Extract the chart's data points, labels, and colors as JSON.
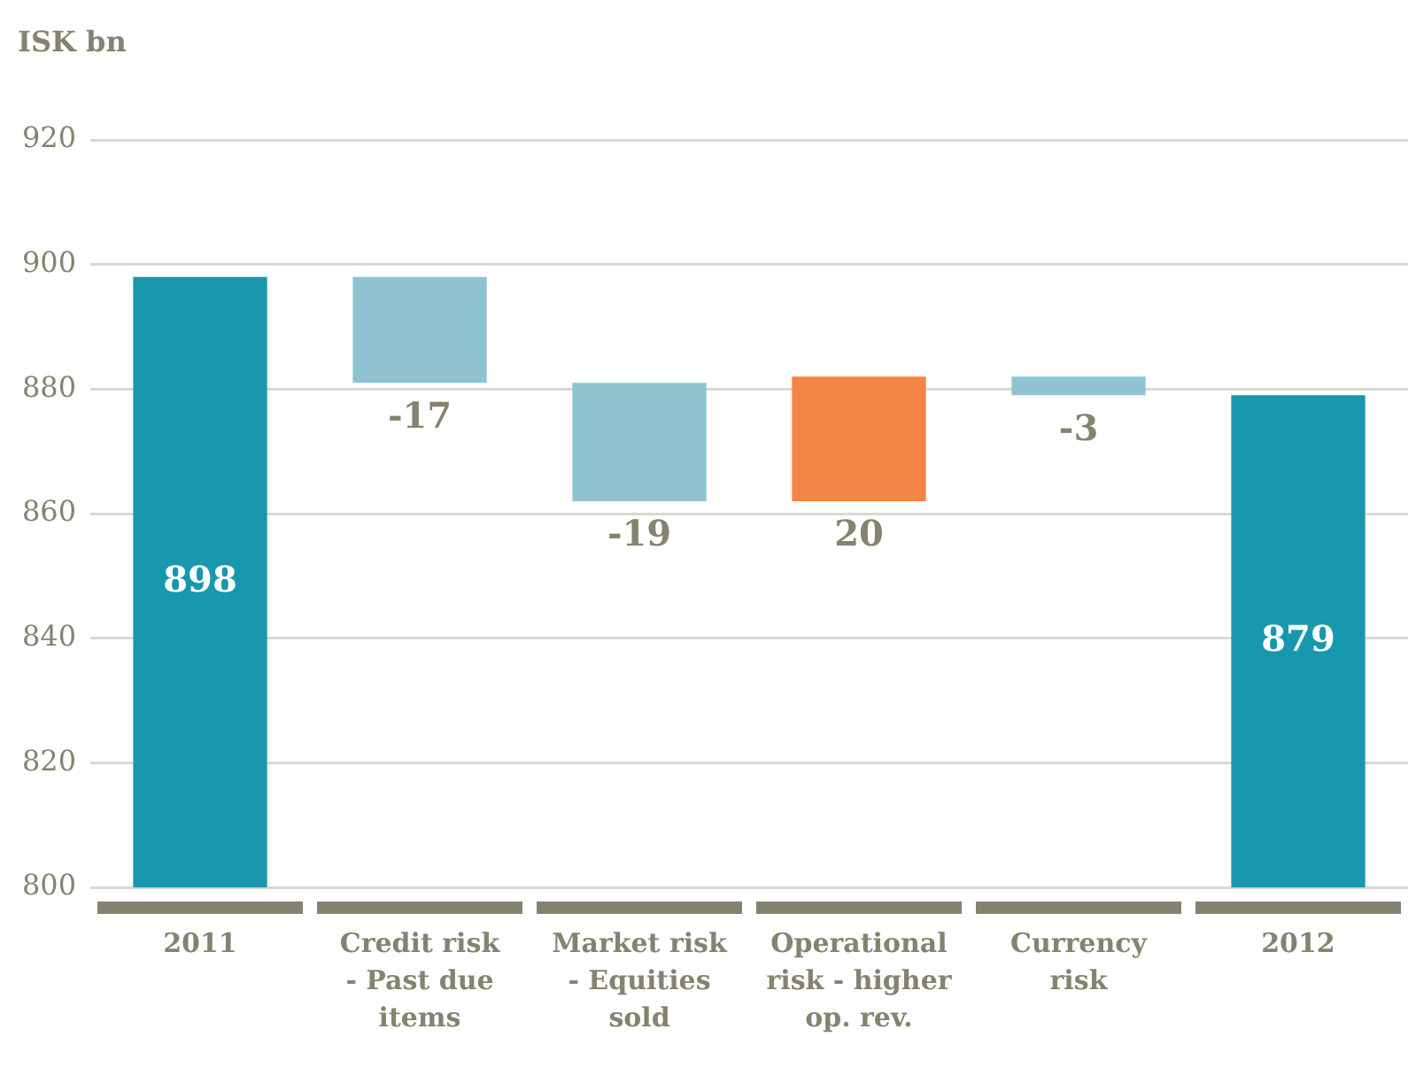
{
  "chart_data": {
    "type": "bar",
    "ylabel": "ISK bn",
    "categories": [
      "2011",
      "Credit risk - Past due items",
      "Market risk - Equities sold",
      "Operational risk - higher op. rev.",
      "Currency risk",
      "2012"
    ],
    "values": [
      898,
      -17,
      -19,
      20,
      -3,
      879
    ],
    "base": [
      null,
      898,
      881,
      862,
      882,
      null
    ],
    "colors": [
      "#1798ac",
      "#90c3d1",
      "#90c3d1",
      "#f58447",
      "#90c3d1",
      "#1798ac"
    ],
    "ylim": [
      800,
      920
    ],
    "yticks": [
      800,
      820,
      840,
      860,
      880,
      900,
      920
    ],
    "grid": "y",
    "data_labels": true
  }
}
